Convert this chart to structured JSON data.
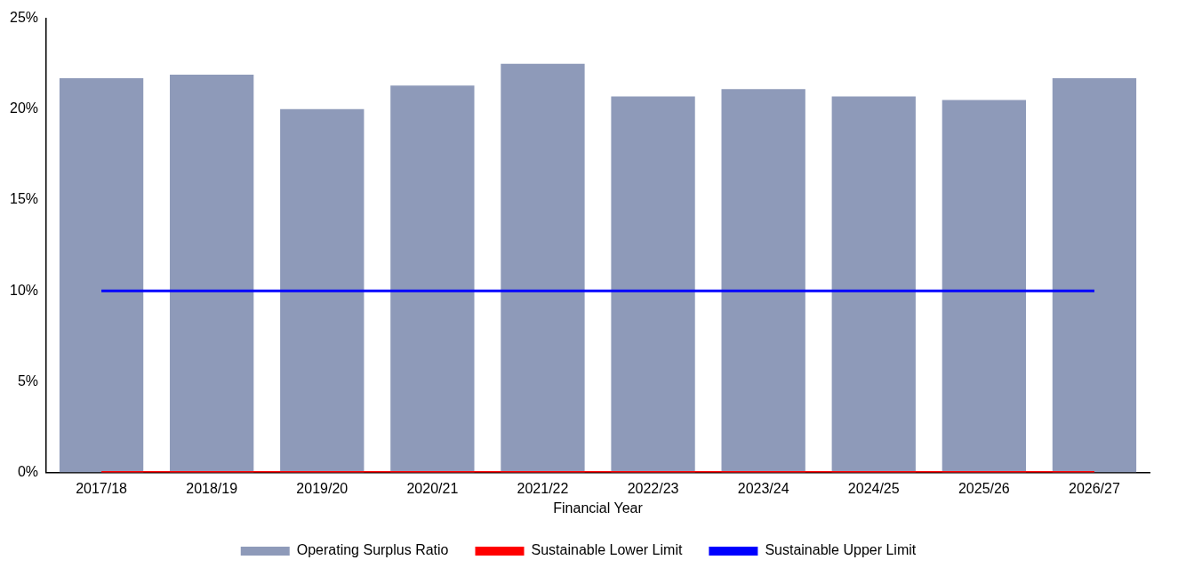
{
  "chart_data": {
    "type": "bar",
    "xlabel": "Financial Year",
    "categories": [
      "2017/18",
      "2018/19",
      "2019/20",
      "2020/21",
      "2021/22",
      "2022/23",
      "2023/24",
      "2024/25",
      "2025/26",
      "2026/27"
    ],
    "series": [
      {
        "name": "Operating Surplus Ratio",
        "color": "#8e9ab9",
        "values": [
          21.7,
          21.9,
          20.0,
          21.3,
          22.5,
          20.7,
          21.1,
          20.7,
          20.5,
          21.7
        ]
      },
      {
        "name": "Sustainable Lower Limit",
        "type": "line",
        "color": "#ff0000",
        "values": [
          0,
          0,
          0,
          0,
          0,
          0,
          0,
          0,
          0,
          0
        ]
      },
      {
        "name": "Sustainable Upper Limit",
        "type": "line",
        "color": "#0000ff",
        "values": [
          10,
          10,
          10,
          10,
          10,
          10,
          10,
          10,
          10,
          10
        ]
      }
    ],
    "ylim": [
      0,
      25
    ],
    "yticks": [
      {
        "value": 0,
        "label": "0%"
      },
      {
        "value": 5,
        "label": "5%"
      },
      {
        "value": 10,
        "label": "10%"
      },
      {
        "value": 15,
        "label": "15%"
      },
      {
        "value": 20,
        "label": "20%"
      },
      {
        "value": 25,
        "label": "25%"
      }
    ],
    "grid": false,
    "legend": "bottom",
    "marker": "none"
  }
}
